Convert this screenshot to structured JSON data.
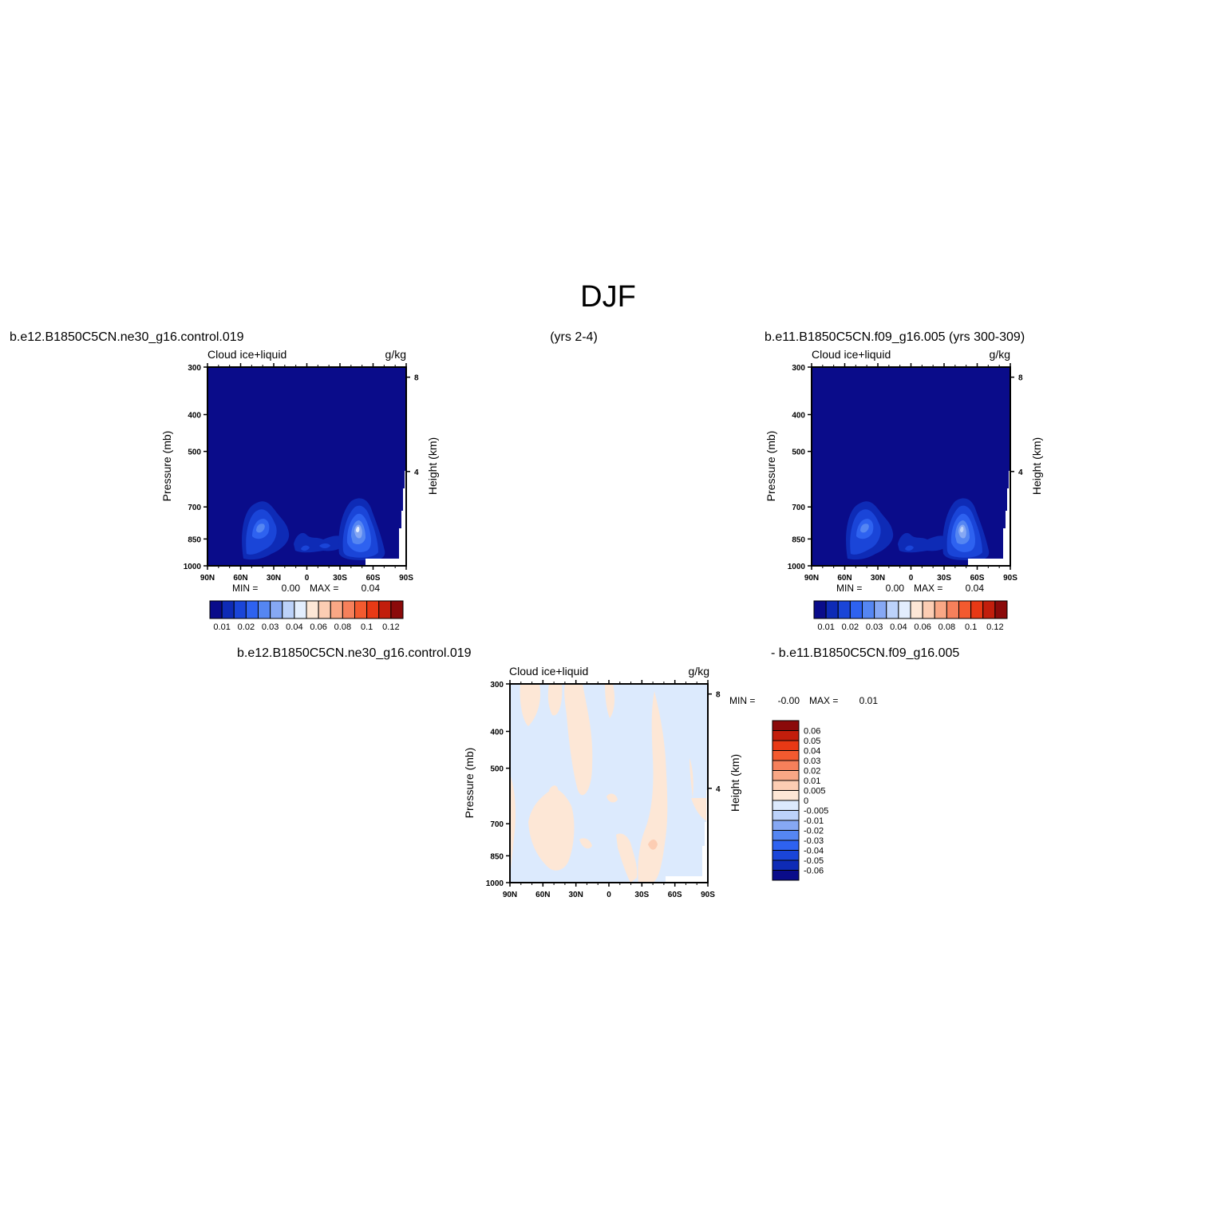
{
  "figure": {
    "season": "DJF",
    "case1_header": "b.e12.B1850C5CN.ne30_g16.control.019",
    "years1": "(yrs 2-4)",
    "case2_header": "b.e11.B1850C5CN.f09_g16.005 (yrs 300-309)",
    "diff_case1": "b.e12.B1850C5CN.ne30_g16.control.019",
    "diff_case2": "- b.e11.B1850C5CN.f09_g16.005"
  },
  "chart_data": [
    {
      "type": "heatmap",
      "title": "Cloud ice+liquid",
      "units": "g/kg",
      "xlabel": "",
      "ylabel": "Pressure (mb)",
      "ylabel_right": "Height (km)",
      "x_ticks": [
        "90N",
        "60N",
        "30N",
        "0",
        "30S",
        "60S",
        "90S"
      ],
      "y_ticks": [
        300,
        400,
        500,
        700,
        850,
        1000
      ],
      "y_right_ticks": [
        8,
        4
      ],
      "y_log_scale": true,
      "min_label": "MIN =",
      "min_value": "0.00",
      "max_label": "MAX =",
      "max_value": "0.04",
      "colorbar_labels": [
        "0.01",
        "0.02",
        "0.03",
        "0.04",
        "0.06",
        "0.08",
        "0.1",
        "0.12"
      ],
      "colorbar_colors": [
        "#0A0C8A",
        "#0E2BB6",
        "#1A45D8",
        "#2E62F0",
        "#5586F2",
        "#86A8F4",
        "#BCD2FA",
        "#E3EEFE",
        "#FDE7D6",
        "#FCCDB3",
        "#F9A785",
        "#F6805B",
        "#F35A2F",
        "#E83915",
        "#C21E0C",
        "#8B0A0A"
      ],
      "peaks": [
        {
          "lat": 50,
          "p": 850,
          "value": 0.03
        },
        {
          "lat": -45,
          "p": 860,
          "value": 0.04
        }
      ]
    },
    {
      "type": "heatmap",
      "title": "Cloud ice+liquid",
      "units": "g/kg",
      "xlabel": "",
      "ylabel": "Pressure (mb)",
      "ylabel_right": "Height (km)",
      "x_ticks": [
        "90N",
        "60N",
        "30N",
        "0",
        "30S",
        "60S",
        "90S"
      ],
      "y_ticks": [
        300,
        400,
        500,
        700,
        850,
        1000
      ],
      "y_right_ticks": [
        8,
        4
      ],
      "y_log_scale": true,
      "min_label": "MIN =",
      "min_value": "0.00",
      "max_label": "MAX =",
      "max_value": "0.04",
      "colorbar_labels": [
        "0.01",
        "0.02",
        "0.03",
        "0.04",
        "0.06",
        "0.08",
        "0.1",
        "0.12"
      ],
      "colorbar_colors": [
        "#0A0C8A",
        "#0E2BB6",
        "#1A45D8",
        "#2E62F0",
        "#5586F2",
        "#86A8F4",
        "#BCD2FA",
        "#E3EEFE",
        "#FDE7D6",
        "#FCCDB3",
        "#F9A785",
        "#F6805B",
        "#F35A2F",
        "#E83915",
        "#C21E0C",
        "#8B0A0A"
      ],
      "peaks": [
        {
          "lat": 50,
          "p": 850,
          "value": 0.03
        },
        {
          "lat": -45,
          "p": 860,
          "value": 0.035
        }
      ]
    },
    {
      "type": "heatmap",
      "title": "Cloud ice+liquid",
      "units": "g/kg",
      "xlabel": "",
      "ylabel": "Pressure (mb)",
      "ylabel_right": "Height (km)",
      "x_ticks": [
        "90N",
        "60N",
        "30N",
        "0",
        "30S",
        "60S",
        "90S"
      ],
      "y_ticks": [
        300,
        400,
        500,
        700,
        850,
        1000
      ],
      "y_right_ticks": [
        8,
        4
      ],
      "y_log_scale": true,
      "min_label": "MIN =",
      "min_value": "-0.00",
      "max_label": "MAX =",
      "max_value": "0.01",
      "colorbar_labels": [
        "0.06",
        "0.05",
        "0.04",
        "0.03",
        "0.02",
        "0.01",
        "0.005",
        "0",
        "-0.005",
        "-0.01",
        "-0.02",
        "-0.03",
        "-0.04",
        "-0.05",
        "-0.06"
      ],
      "colorbar_colors": [
        "#8B0A0A",
        "#C21E0C",
        "#E83915",
        "#F35A2F",
        "#F6805B",
        "#F9A785",
        "#FCCDB3",
        "#FDE7D6",
        "#DCEAFD",
        "#BCD2FA",
        "#86A8F4",
        "#5586F2",
        "#2E62F0",
        "#1A45D8",
        "#0E2BB6",
        "#0A0C8A"
      ],
      "background_value_range": "-0.005 to 0",
      "positive_patch_value_range": "0 to 0.005",
      "local_max_value": "0.005 to 0.01"
    }
  ]
}
